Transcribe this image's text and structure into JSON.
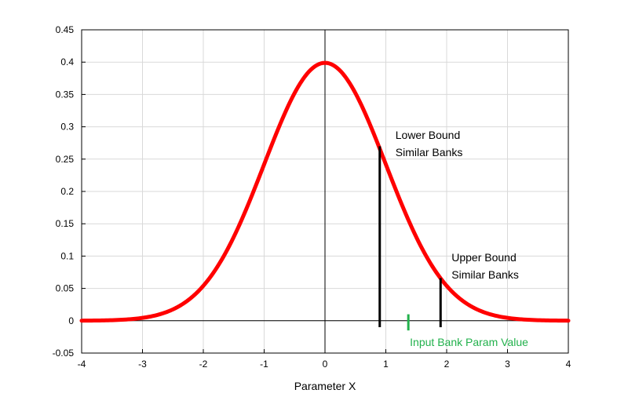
{
  "chart_data": {
    "type": "line",
    "title": "",
    "xlabel": "Parameter X",
    "ylabel": "",
    "xlim": [
      -4,
      4
    ],
    "ylim": [
      -0.05,
      0.45
    ],
    "grid": true,
    "x_ticks": [
      -4,
      -3,
      -2,
      -1,
      0,
      1,
      2,
      3,
      4
    ],
    "y_ticks": [
      -0.05,
      0,
      0.05,
      0.1,
      0.15,
      0.2,
      0.25,
      0.3,
      0.35,
      0.4,
      0.45
    ],
    "x_tick_labels": [
      "-4",
      "-3",
      "-2",
      "-1",
      "0",
      "1",
      "2",
      "3",
      "4"
    ],
    "y_tick_labels": [
      "-0.05",
      "0",
      "0.05",
      "0.1",
      "0.15",
      "0.2",
      "0.25",
      "0.3",
      "0.35",
      "0.4",
      "0.45"
    ],
    "series": [
      {
        "color": "#ff0000",
        "function": "standard normal density",
        "x": [
          -4,
          -3.5,
          -3,
          -2.5,
          -2,
          -1.5,
          -1,
          -0.5,
          0,
          0.5,
          1,
          1.5,
          2,
          2.5,
          3,
          3.5,
          4
        ],
        "values": [
          0.0001,
          0.0009,
          0.0044,
          0.0175,
          0.054,
          0.1295,
          0.242,
          0.3521,
          0.3989,
          0.3521,
          0.242,
          0.1295,
          0.054,
          0.0175,
          0.0044,
          0.0009,
          0.0001
        ]
      }
    ],
    "markers": [
      {
        "label_lines": [
          "Lower Bound",
          "Similar Banks"
        ],
        "x": 0.9,
        "y_from": -0.01,
        "y_to": 0.27,
        "color": "#000000"
      },
      {
        "label_lines": [
          "Upper Bound",
          "Similar Banks"
        ],
        "x": 1.9,
        "y_from": -0.01,
        "y_to": 0.066,
        "color": "#000000"
      },
      {
        "label_lines": [
          "Input Bank Param Value"
        ],
        "x": 1.37,
        "y_from": -0.015,
        "y_to": 0.01,
        "color": "#22b14c"
      }
    ]
  }
}
